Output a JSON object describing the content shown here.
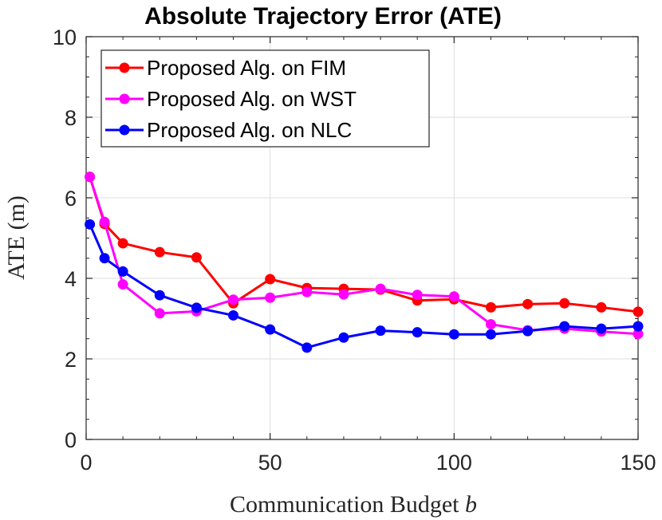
{
  "chart_data": {
    "type": "line",
    "title": "Absolute Trajectory Error (ATE)",
    "xlabel": "Communication Budget",
    "xlabel_var": "b",
    "ylabel": "ATE (m)",
    "xlim": [
      0,
      150
    ],
    "ylim": [
      0,
      10
    ],
    "xticks": [
      "0",
      "50",
      "100",
      "150"
    ],
    "yticks": [
      "0",
      "2",
      "4",
      "6",
      "8",
      "10"
    ],
    "grid": true,
    "legend_position": "top-left",
    "x": [
      1,
      5,
      10,
      20,
      30,
      40,
      50,
      60,
      70,
      80,
      90,
      100,
      110,
      120,
      130,
      140,
      150
    ],
    "series": [
      {
        "name": "Proposed Alg. on FIM",
        "color": "#ff0000",
        "values": [
          6.52,
          5.35,
          4.87,
          4.65,
          4.52,
          3.38,
          3.98,
          3.76,
          3.74,
          3.72,
          3.45,
          3.48,
          3.28,
          3.36,
          3.38,
          3.28,
          3.17
        ]
      },
      {
        "name": "Proposed Alg. on WST",
        "color": "#ff00ff",
        "values": [
          6.52,
          5.4,
          3.85,
          3.13,
          3.18,
          3.47,
          3.52,
          3.66,
          3.6,
          3.74,
          3.59,
          3.55,
          2.86,
          2.71,
          2.75,
          2.68,
          2.62
        ]
      },
      {
        "name": "Proposed Alg. on NLC",
        "color": "#0000ff",
        "values": [
          5.34,
          4.5,
          4.17,
          3.58,
          3.27,
          3.08,
          2.73,
          2.28,
          2.53,
          2.7,
          2.66,
          2.61,
          2.61,
          2.69,
          2.81,
          2.75,
          2.81
        ]
      }
    ]
  }
}
